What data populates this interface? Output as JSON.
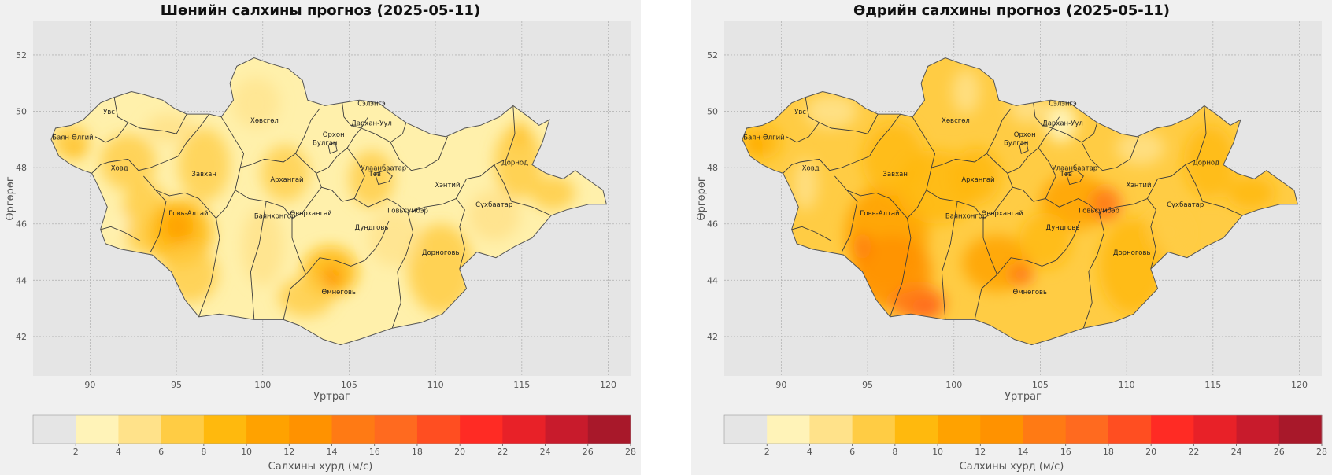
{
  "maps": [
    {
      "title": "Шөнийн салхины прогноз (2025-05-11)",
      "xlabel": "Уртраг",
      "ylabel": "Өргөрөг",
      "intensity": "low",
      "colorbar_label": "Салхины хурд (м/с)"
    },
    {
      "title": "Өдрийн салхины прогноз (2025-05-11)",
      "xlabel": "Уртраг",
      "ylabel": "Өргөрөг",
      "intensity": "high",
      "colorbar_label": "Салхины хурд (м/с)"
    }
  ],
  "axes": {
    "x_ticks": [
      90,
      95,
      100,
      105,
      110,
      115,
      120
    ],
    "y_ticks": [
      42,
      44,
      46,
      48,
      50,
      52
    ],
    "x_range": [
      86.7,
      121.3
    ],
    "y_range": [
      40.6,
      53.2
    ]
  },
  "colorbar": {
    "ticks": [
      2,
      4,
      6,
      8,
      10,
      12,
      14,
      16,
      18,
      20,
      22,
      24,
      26,
      28
    ],
    "range": [
      0,
      28
    ],
    "colors": [
      "#e5e5e5",
      "#fff3b8",
      "#ffe28a",
      "#ffcc44",
      "#ffb90d",
      "#ffa200",
      "#ff9200",
      "#ff7a14",
      "#ff6a1f",
      "#ff4e21",
      "#ff2b24",
      "#e82128",
      "#c81b2c",
      "#a8182a"
    ]
  },
  "regions": [
    {
      "name": "Увс",
      "lon": 91.1,
      "lat": 49.9
    },
    {
      "name": "Баян-Өлгий",
      "lon": 89.0,
      "lat": 49.0
    },
    {
      "name": "Ховд",
      "lon": 91.7,
      "lat": 47.9
    },
    {
      "name": "Завхан",
      "lon": 96.6,
      "lat": 47.7
    },
    {
      "name": "Говь-Алтай",
      "lon": 95.7,
      "lat": 46.3
    },
    {
      "name": "Хөвсгөл",
      "lon": 100.1,
      "lat": 49.6
    },
    {
      "name": "Архангай",
      "lon": 101.4,
      "lat": 47.5
    },
    {
      "name": "Баянхонгор",
      "lon": 100.7,
      "lat": 46.2
    },
    {
      "name": "Өвөрхангай",
      "lon": 102.8,
      "lat": 46.3
    },
    {
      "name": "Булган",
      "lon": 103.6,
      "lat": 48.8
    },
    {
      "name": "Орхон",
      "lon": 104.1,
      "lat": 49.1
    },
    {
      "name": "Сэлэнгэ",
      "lon": 106.3,
      "lat": 50.2
    },
    {
      "name": "Дархан-Уул",
      "lon": 106.3,
      "lat": 49.5
    },
    {
      "name": "Улаанбаатар",
      "lon": 107.0,
      "lat": 47.9
    },
    {
      "name": "Төв",
      "lon": 106.5,
      "lat": 47.7
    },
    {
      "name": "Хэнтий",
      "lon": 110.7,
      "lat": 47.3
    },
    {
      "name": "Дорнод",
      "lon": 114.6,
      "lat": 48.1
    },
    {
      "name": "Сүхбаатар",
      "lon": 113.4,
      "lat": 46.6
    },
    {
      "name": "Говьсүмбэр",
      "lon": 108.4,
      "lat": 46.4
    },
    {
      "name": "Дундговь",
      "lon": 106.3,
      "lat": 45.8
    },
    {
      "name": "Дорноговь",
      "lon": 110.3,
      "lat": 44.9
    },
    {
      "name": "Өмнөговь",
      "lon": 104.4,
      "lat": 43.5
    }
  ],
  "outline": [
    [
      87.75,
      49.0
    ],
    [
      88.0,
      49.4
    ],
    [
      88.9,
      49.5
    ],
    [
      89.6,
      49.7
    ],
    [
      90.6,
      50.3
    ],
    [
      91.4,
      50.5
    ],
    [
      92.4,
      50.7
    ],
    [
      93.1,
      50.6
    ],
    [
      94.2,
      50.4
    ],
    [
      94.9,
      50.1
    ],
    [
      95.6,
      49.9
    ],
    [
      96.9,
      49.9
    ],
    [
      97.6,
      49.8
    ],
    [
      98.3,
      50.4
    ],
    [
      98.1,
      51.0
    ],
    [
      98.5,
      51.6
    ],
    [
      99.5,
      51.9
    ],
    [
      100.4,
      51.7
    ],
    [
      101.5,
      51.5
    ],
    [
      102.3,
      51.1
    ],
    [
      102.6,
      50.4
    ],
    [
      103.6,
      50.2
    ],
    [
      104.6,
      50.3
    ],
    [
      105.6,
      50.4
    ],
    [
      106.7,
      50.3
    ],
    [
      107.6,
      49.9
    ],
    [
      108.3,
      49.6
    ],
    [
      109.7,
      49.2
    ],
    [
      110.6,
      49.1
    ],
    [
      111.7,
      49.4
    ],
    [
      112.6,
      49.5
    ],
    [
      113.7,
      49.8
    ],
    [
      114.5,
      50.2
    ],
    [
      115.4,
      49.8
    ],
    [
      116.0,
      49.5
    ],
    [
      116.6,
      49.7
    ],
    [
      116.2,
      48.9
    ],
    [
      115.6,
      48.1
    ],
    [
      116.4,
      47.8
    ],
    [
      117.4,
      47.6
    ],
    [
      118.1,
      47.9
    ],
    [
      119.0,
      47.5
    ],
    [
      119.7,
      47.2
    ],
    [
      119.9,
      46.7
    ],
    [
      118.9,
      46.7
    ],
    [
      117.6,
      46.5
    ],
    [
      116.7,
      46.3
    ],
    [
      115.6,
      45.5
    ],
    [
      114.6,
      45.2
    ],
    [
      113.5,
      44.8
    ],
    [
      112.4,
      45.0
    ],
    [
      111.4,
      44.4
    ],
    [
      111.8,
      43.7
    ],
    [
      110.4,
      42.8
    ],
    [
      109.2,
      42.5
    ],
    [
      107.5,
      42.3
    ],
    [
      105.6,
      41.9
    ],
    [
      104.5,
      41.7
    ],
    [
      103.5,
      41.9
    ],
    [
      102.1,
      42.4
    ],
    [
      101.2,
      42.6
    ],
    [
      99.5,
      42.6
    ],
    [
      97.5,
      42.8
    ],
    [
      96.3,
      42.7
    ],
    [
      95.5,
      43.3
    ],
    [
      94.7,
      44.3
    ],
    [
      93.6,
      44.9
    ],
    [
      91.8,
      45.1
    ],
    [
      90.9,
      45.3
    ],
    [
      90.6,
      45.8
    ],
    [
      91.0,
      46.6
    ],
    [
      90.5,
      47.3
    ],
    [
      90.1,
      47.8
    ],
    [
      89.6,
      47.9
    ],
    [
      88.9,
      48.1
    ],
    [
      88.2,
      48.4
    ],
    [
      87.75,
      49.0
    ]
  ],
  "borders": [
    [
      [
        91.4,
        50.5
      ],
      [
        91.6,
        49.8
      ],
      [
        92.2,
        49.6
      ],
      [
        92.9,
        49.4
      ],
      [
        94.3,
        49.3
      ],
      [
        95.0,
        49.2
      ],
      [
        95.6,
        49.9
      ]
    ],
    [
      [
        90.3,
        49.1
      ],
      [
        90.9,
        48.9
      ],
      [
        91.6,
        49.1
      ],
      [
        92.2,
        49.6
      ]
    ],
    [
      [
        90.1,
        47.8
      ],
      [
        90.6,
        48.1
      ],
      [
        91.1,
        48.2
      ],
      [
        92.2,
        48.3
      ],
      [
        92.8,
        47.9
      ],
      [
        93.5,
        48.0
      ],
      [
        94.3,
        48.2
      ],
      [
        95.1,
        48.4
      ],
      [
        95.6,
        48.9
      ],
      [
        96.3,
        49.4
      ],
      [
        96.9,
        49.9
      ]
    ],
    [
      [
        90.6,
        45.8
      ],
      [
        91.2,
        45.9
      ],
      [
        92.0,
        45.7
      ],
      [
        92.9,
        45.4
      ]
    ],
    [
      [
        93.1,
        47.7
      ],
      [
        93.8,
        47.2
      ],
      [
        94.6,
        47.0
      ],
      [
        95.5,
        47.1
      ],
      [
        96.3,
        46.9
      ],
      [
        97.3,
        46.2
      ]
    ],
    [
      [
        93.5,
        45.0
      ],
      [
        94.0,
        45.6
      ],
      [
        94.4,
        46.8
      ],
      [
        93.8,
        47.2
      ]
    ],
    [
      [
        96.3,
        42.7
      ],
      [
        97.0,
        43.9
      ],
      [
        97.5,
        45.5
      ],
      [
        97.3,
        46.2
      ],
      [
        97.9,
        46.6
      ],
      [
        98.4,
        47.2
      ],
      [
        98.7,
        48.0
      ],
      [
        98.9,
        48.5
      ],
      [
        98.3,
        49.1
      ],
      [
        97.6,
        49.8
      ]
    ],
    [
      [
        98.7,
        48.0
      ],
      [
        99.3,
        48.1
      ],
      [
        100.1,
        48.3
      ],
      [
        101.2,
        48.2
      ],
      [
        101.9,
        48.5
      ],
      [
        102.4,
        49.1
      ],
      [
        102.8,
        49.7
      ],
      [
        103.3,
        50.1
      ]
    ],
    [
      [
        98.4,
        47.2
      ],
      [
        99.2,
        46.9
      ],
      [
        100.2,
        46.8
      ],
      [
        101.2,
        46.6
      ],
      [
        101.7,
        46.2
      ],
      [
        102.3,
        46.4
      ],
      [
        102.9,
        46.9
      ],
      [
        103.4,
        47.3
      ],
      [
        103.1,
        47.8
      ],
      [
        102.4,
        48.2
      ],
      [
        101.9,
        48.5
      ]
    ],
    [
      [
        99.5,
        42.6
      ],
      [
        99.3,
        44.3
      ],
      [
        99.8,
        45.3
      ],
      [
        100.2,
        46.8
      ]
    ],
    [
      [
        101.2,
        42.6
      ],
      [
        101.6,
        43.7
      ],
      [
        102.5,
        44.2
      ],
      [
        103.3,
        44.8
      ],
      [
        104.2,
        44.7
      ],
      [
        105.1,
        44.5
      ],
      [
        105.9,
        44.7
      ],
      [
        106.5,
        45.1
      ],
      [
        106.9,
        45.5
      ],
      [
        107.3,
        46.1
      ]
    ],
    [
      [
        101.7,
        46.2
      ],
      [
        101.7,
        45.5
      ],
      [
        102.1,
        44.8
      ],
      [
        102.5,
        44.2
      ]
    ],
    [
      [
        103.4,
        47.3
      ],
      [
        104.0,
        47.2
      ],
      [
        104.6,
        46.8
      ],
      [
        105.3,
        46.9
      ],
      [
        106.1,
        46.6
      ],
      [
        107.2,
        46.9
      ],
      [
        107.8,
        46.7
      ],
      [
        108.4,
        46.4
      ],
      [
        108.7,
        45.7
      ],
      [
        108.3,
        44.9
      ],
      [
        107.8,
        44.3
      ],
      [
        108.0,
        43.2
      ],
      [
        107.5,
        42.3
      ]
    ],
    [
      [
        103.1,
        47.8
      ],
      [
        103.8,
        48.0
      ],
      [
        104.3,
        48.4
      ],
      [
        104.9,
        48.7
      ],
      [
        105.3,
        49.1
      ],
      [
        105.7,
        49.4
      ],
      [
        106.1,
        49.8
      ]
    ],
    [
      [
        104.6,
        50.3
      ],
      [
        104.7,
        49.8
      ],
      [
        105.1,
        49.5
      ],
      [
        105.7,
        49.4
      ],
      [
        106.5,
        49.2
      ],
      [
        107.4,
        48.9
      ],
      [
        108.1,
        49.2
      ],
      [
        108.3,
        49.6
      ]
    ],
    [
      [
        104.9,
        48.7
      ],
      [
        105.5,
        48.2
      ],
      [
        105.9,
        47.7
      ],
      [
        105.3,
        46.9
      ]
    ],
    [
      [
        107.4,
        48.9
      ],
      [
        107.9,
        48.3
      ],
      [
        108.6,
        47.9
      ],
      [
        109.4,
        48.0
      ],
      [
        110.2,
        48.3
      ],
      [
        110.7,
        49.1
      ]
    ],
    [
      [
        108.4,
        46.4
      ],
      [
        109.4,
        46.6
      ],
      [
        110.4,
        46.7
      ],
      [
        111.2,
        46.9
      ],
      [
        111.8,
        47.6
      ],
      [
        112.6,
        47.7
      ],
      [
        113.4,
        48.1
      ],
      [
        114.1,
        48.3
      ],
      [
        114.6,
        49.2
      ],
      [
        114.5,
        50.2
      ]
    ],
    [
      [
        111.2,
        46.9
      ],
      [
        111.7,
        46.5
      ],
      [
        111.4,
        45.9
      ],
      [
        111.7,
        45.1
      ],
      [
        111.4,
        44.4
      ]
    ],
    [
      [
        113.4,
        48.1
      ],
      [
        114.0,
        47.4
      ],
      [
        114.4,
        46.8
      ],
      [
        115.6,
        46.6
      ],
      [
        116.7,
        46.3
      ]
    ],
    [
      [
        106.5,
        47.8
      ],
      [
        107.1,
        47.9
      ],
      [
        107.5,
        47.7
      ],
      [
        107.3,
        47.5
      ],
      [
        106.7,
        47.4
      ],
      [
        106.5,
        47.8
      ]
    ],
    [
      [
        103.8,
        48.8
      ],
      [
        104.2,
        48.9
      ],
      [
        104.3,
        48.6
      ],
      [
        103.9,
        48.5
      ],
      [
        103.8,
        48.8
      ]
    ]
  ],
  "palette_left": {
    "base": "#fff0ab",
    "blobs": [
      {
        "lon": 88.9,
        "lat": 48.9,
        "rx": 1.1,
        "ry": 0.6,
        "c": "#ffcc44",
        "o": 0.9
      },
      {
        "lon": 89.2,
        "lat": 48.6,
        "rx": 0.5,
        "ry": 0.3,
        "c": "#ffb90d",
        "o": 0.7
      },
      {
        "lon": 92.2,
        "lat": 48.2,
        "rx": 1.6,
        "ry": 1.0,
        "c": "#ffcc44",
        "o": 0.8
      },
      {
        "lon": 93.2,
        "lat": 46.2,
        "rx": 1.4,
        "ry": 1.3,
        "c": "#ffcc44",
        "o": 0.85
      },
      {
        "lon": 95.2,
        "lat": 45.7,
        "rx": 1.9,
        "ry": 1.2,
        "c": "#ffb90d",
        "o": 0.85
      },
      {
        "lon": 95.1,
        "lat": 45.9,
        "rx": 0.9,
        "ry": 0.6,
        "c": "#ffa200",
        "o": 0.9
      },
      {
        "lon": 95.8,
        "lat": 44.2,
        "rx": 1.6,
        "ry": 1.0,
        "c": "#ffcc44",
        "o": 0.8
      },
      {
        "lon": 96.6,
        "lat": 48.1,
        "rx": 1.5,
        "ry": 1.3,
        "c": "#ffcc44",
        "o": 0.75
      },
      {
        "lon": 94.6,
        "lat": 49.4,
        "rx": 1.4,
        "ry": 0.5,
        "c": "#ffe28a",
        "o": 0.9
      },
      {
        "lon": 101.3,
        "lat": 47.8,
        "rx": 1.4,
        "ry": 1.0,
        "c": "#ffcc44",
        "o": 0.75
      },
      {
        "lon": 103.9,
        "lat": 44.3,
        "rx": 1.6,
        "ry": 0.9,
        "c": "#ffb90d",
        "o": 0.85
      },
      {
        "lon": 104.0,
        "lat": 44.1,
        "rx": 0.5,
        "ry": 0.4,
        "c": "#ff9200",
        "o": 0.9
      },
      {
        "lon": 102.5,
        "lat": 43.4,
        "rx": 1.6,
        "ry": 0.7,
        "c": "#ffcc44",
        "o": 0.8
      },
      {
        "lon": 106.3,
        "lat": 47.6,
        "rx": 1.3,
        "ry": 1.0,
        "c": "#ffcc44",
        "o": 0.8
      },
      {
        "lon": 110.3,
        "lat": 44.4,
        "rx": 1.9,
        "ry": 1.6,
        "c": "#ffcc44",
        "o": 0.85
      },
      {
        "lon": 114.8,
        "lat": 48.2,
        "rx": 1.4,
        "ry": 1.3,
        "c": "#ffcc44",
        "o": 0.85
      },
      {
        "lon": 114.9,
        "lat": 49.2,
        "rx": 0.3,
        "ry": 0.5,
        "c": "#ffb90d",
        "o": 0.8
      },
      {
        "lon": 116.8,
        "lat": 47.1,
        "rx": 1.3,
        "ry": 0.6,
        "c": "#ffcc44",
        "o": 0.85
      },
      {
        "lon": 113.4,
        "lat": 46.3,
        "rx": 1.5,
        "ry": 0.9,
        "c": "#ffe28a",
        "o": 0.85
      },
      {
        "lon": 100.0,
        "lat": 45.2,
        "rx": 1.2,
        "ry": 1.4,
        "c": "#ffe28a",
        "o": 0.8
      },
      {
        "lon": 99.6,
        "lat": 50.3,
        "rx": 1.4,
        "ry": 0.9,
        "c": "#ffe28a",
        "o": 0.7
      },
      {
        "lon": 107.6,
        "lat": 45.5,
        "rx": 1.5,
        "ry": 1.0,
        "c": "#ffe28a",
        "o": 0.75
      },
      {
        "lon": 91.8,
        "lat": 46.0,
        "rx": 0.4,
        "ry": 0.4,
        "c": "#fff3b8",
        "o": 1.0
      }
    ]
  },
  "palette_right": {
    "base": "#ffcc44",
    "blobs": [
      {
        "lon": 88.9,
        "lat": 48.9,
        "rx": 1.1,
        "ry": 0.6,
        "c": "#ffb90d",
        "o": 0.9
      },
      {
        "lon": 88.5,
        "lat": 48.8,
        "rx": 0.5,
        "ry": 0.3,
        "c": "#ffa200",
        "o": 0.8
      },
      {
        "lon": 96.1,
        "lat": 45.6,
        "rx": 2.4,
        "ry": 1.8,
        "c": "#ffa200",
        "o": 0.9
      },
      {
        "lon": 96.4,
        "lat": 44.3,
        "rx": 2.3,
        "ry": 1.3,
        "c": "#ff9200",
        "o": 0.9
      },
      {
        "lon": 97.9,
        "lat": 43.2,
        "rx": 1.6,
        "ry": 0.6,
        "c": "#ff7a14",
        "o": 0.9
      },
      {
        "lon": 98.4,
        "lat": 43.0,
        "rx": 0.9,
        "ry": 0.4,
        "c": "#ff6a1f",
        "o": 0.9
      },
      {
        "lon": 94.7,
        "lat": 45.2,
        "rx": 0.5,
        "ry": 0.5,
        "c": "#ff7a14",
        "o": 0.8
      },
      {
        "lon": 99.0,
        "lat": 47.3,
        "rx": 2.3,
        "ry": 1.3,
        "c": "#ffb90d",
        "o": 0.85
      },
      {
        "lon": 96.5,
        "lat": 48.3,
        "rx": 1.8,
        "ry": 1.3,
        "c": "#ffb90d",
        "o": 0.8
      },
      {
        "lon": 101.3,
        "lat": 47.7,
        "rx": 1.4,
        "ry": 1.0,
        "c": "#ffb90d",
        "o": 0.85
      },
      {
        "lon": 102.5,
        "lat": 44.6,
        "rx": 2.0,
        "ry": 1.0,
        "c": "#ffa200",
        "o": 0.85
      },
      {
        "lon": 103.9,
        "lat": 44.2,
        "rx": 0.7,
        "ry": 0.4,
        "c": "#ff7a14",
        "o": 0.9
      },
      {
        "lon": 107.0,
        "lat": 46.8,
        "rx": 2.0,
        "ry": 1.0,
        "c": "#ffa200",
        "o": 0.85
      },
      {
        "lon": 108.8,
        "lat": 46.7,
        "rx": 0.9,
        "ry": 0.6,
        "c": "#ff7a14",
        "o": 0.9
      },
      {
        "lon": 105.3,
        "lat": 45.4,
        "rx": 1.5,
        "ry": 1.0,
        "c": "#ffb90d",
        "o": 0.8
      },
      {
        "lon": 110.3,
        "lat": 44.5,
        "rx": 1.9,
        "ry": 1.7,
        "c": "#ffb90d",
        "o": 0.85
      },
      {
        "lon": 114.8,
        "lat": 48.2,
        "rx": 1.5,
        "ry": 1.3,
        "c": "#ffb90d",
        "o": 0.8
      },
      {
        "lon": 117.2,
        "lat": 47.1,
        "rx": 1.4,
        "ry": 0.6,
        "c": "#ffb90d",
        "o": 0.85
      },
      {
        "lon": 106.2,
        "lat": 49.6,
        "rx": 0.9,
        "ry": 0.7,
        "c": "#fff3b8",
        "o": 0.95
      },
      {
        "lon": 104.3,
        "lat": 50.1,
        "rx": 1.1,
        "ry": 0.5,
        "c": "#ffe28a",
        "o": 0.85
      },
      {
        "lon": 100.7,
        "lat": 50.7,
        "rx": 0.8,
        "ry": 0.8,
        "c": "#ffe28a",
        "o": 0.85
      },
      {
        "lon": 92.9,
        "lat": 50.0,
        "rx": 1.5,
        "ry": 0.6,
        "c": "#ffe28a",
        "o": 0.9
      },
      {
        "lon": 91.4,
        "lat": 47.4,
        "rx": 0.7,
        "ry": 0.9,
        "c": "#ffe28a",
        "o": 0.85
      },
      {
        "lon": 110.8,
        "lat": 48.7,
        "rx": 1.4,
        "ry": 0.6,
        "c": "#ffe28a",
        "o": 0.85
      },
      {
        "lon": 112.4,
        "lat": 45.7,
        "rx": 1.1,
        "ry": 0.7,
        "c": "#ffcc44",
        "o": 0.8
      }
    ]
  }
}
